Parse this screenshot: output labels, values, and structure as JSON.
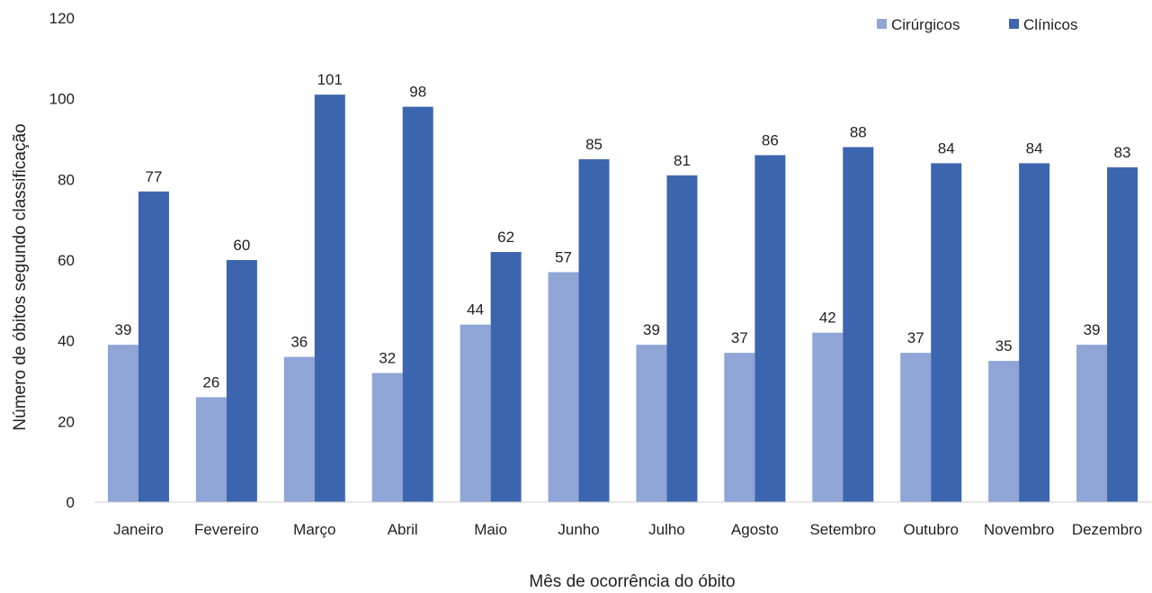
{
  "chart_data": {
    "type": "bar",
    "title": "",
    "xlabel": "Mês de ocorrência do óbito",
    "ylabel": "Número de óbitos segundo classificação",
    "ylim": [
      0,
      120
    ],
    "yticks": [
      0,
      20,
      40,
      60,
      80,
      100,
      120
    ],
    "grid": false,
    "legend_position": "top-right",
    "categories": [
      "Janeiro",
      "Fevereiro",
      "Março",
      "Abril",
      "Maio",
      "Junho",
      "Julho",
      "Agosto",
      "Setembro",
      "Outubro",
      "Novembro",
      "Dezembro"
    ],
    "series": [
      {
        "name": "Cirúrgicos",
        "color": "#8EA5D6",
        "values": [
          39,
          26,
          36,
          32,
          44,
          57,
          39,
          37,
          42,
          37,
          35,
          39
        ]
      },
      {
        "name": "Clínicos",
        "color": "#3C65AF",
        "values": [
          77,
          60,
          101,
          98,
          62,
          85,
          81,
          86,
          88,
          84,
          84,
          83
        ]
      }
    ]
  }
}
